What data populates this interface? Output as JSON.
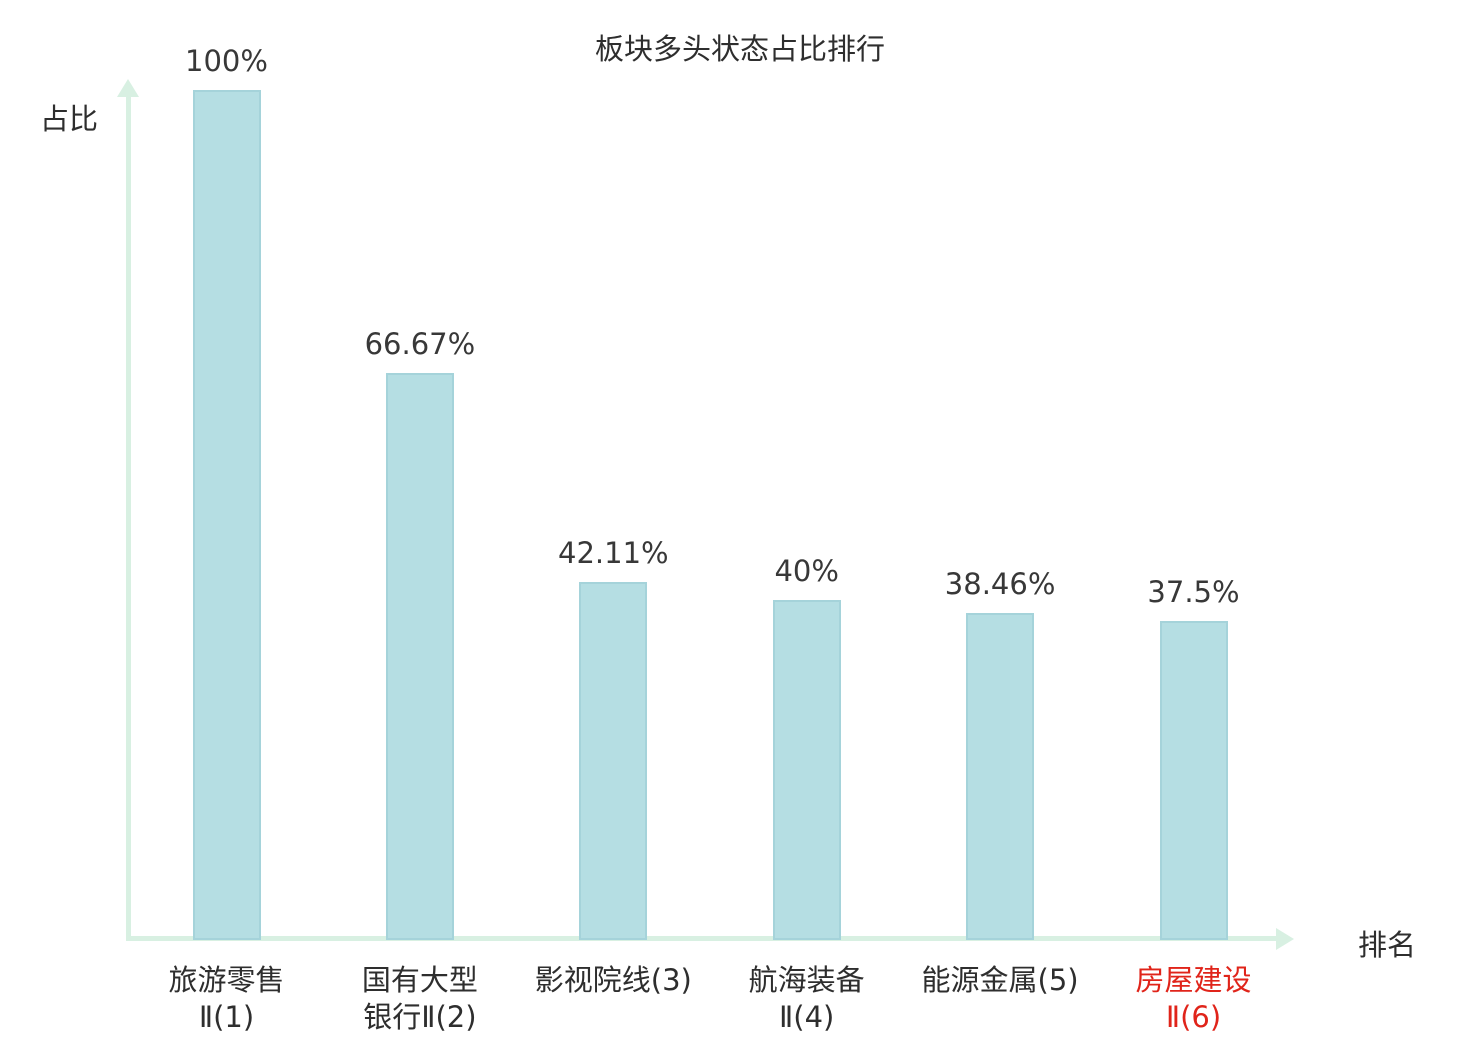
{
  "chart_data": {
    "type": "bar",
    "title": "板块多头状态占比排行",
    "xlabel": "排名",
    "ylabel": "占比",
    "categories": [
      "旅游零售Ⅱ(1)",
      "国有大型银行Ⅱ(2)",
      "影视院线(3)",
      "航海装备Ⅱ(4)",
      "能源金属(5)",
      "房屋建设Ⅱ(6)"
    ],
    "category_lines": [
      [
        "旅游零售",
        "Ⅱ(1)"
      ],
      [
        "国有大型",
        "银行Ⅱ(2)"
      ],
      [
        "影视院线(3)"
      ],
      [
        "航海装备",
        "Ⅱ(4)"
      ],
      [
        "能源金属(5)"
      ],
      [
        "房屋建设",
        "Ⅱ(6)"
      ]
    ],
    "values": [
      100,
      66.67,
      42.11,
      40,
      38.46,
      37.5
    ],
    "value_labels": [
      "100%",
      "66.67%",
      "42.11%",
      "40%",
      "38.46%",
      "37.5%"
    ],
    "highlight_index": 5,
    "ylim": [
      0,
      100
    ],
    "grid": false,
    "legend": null,
    "colors": {
      "bar_fill": "#b5dee3",
      "bar_border": "#a5d3da",
      "axis": "#d8f0e2",
      "text": "#2e2e2e",
      "highlight": "#e0241a"
    }
  }
}
